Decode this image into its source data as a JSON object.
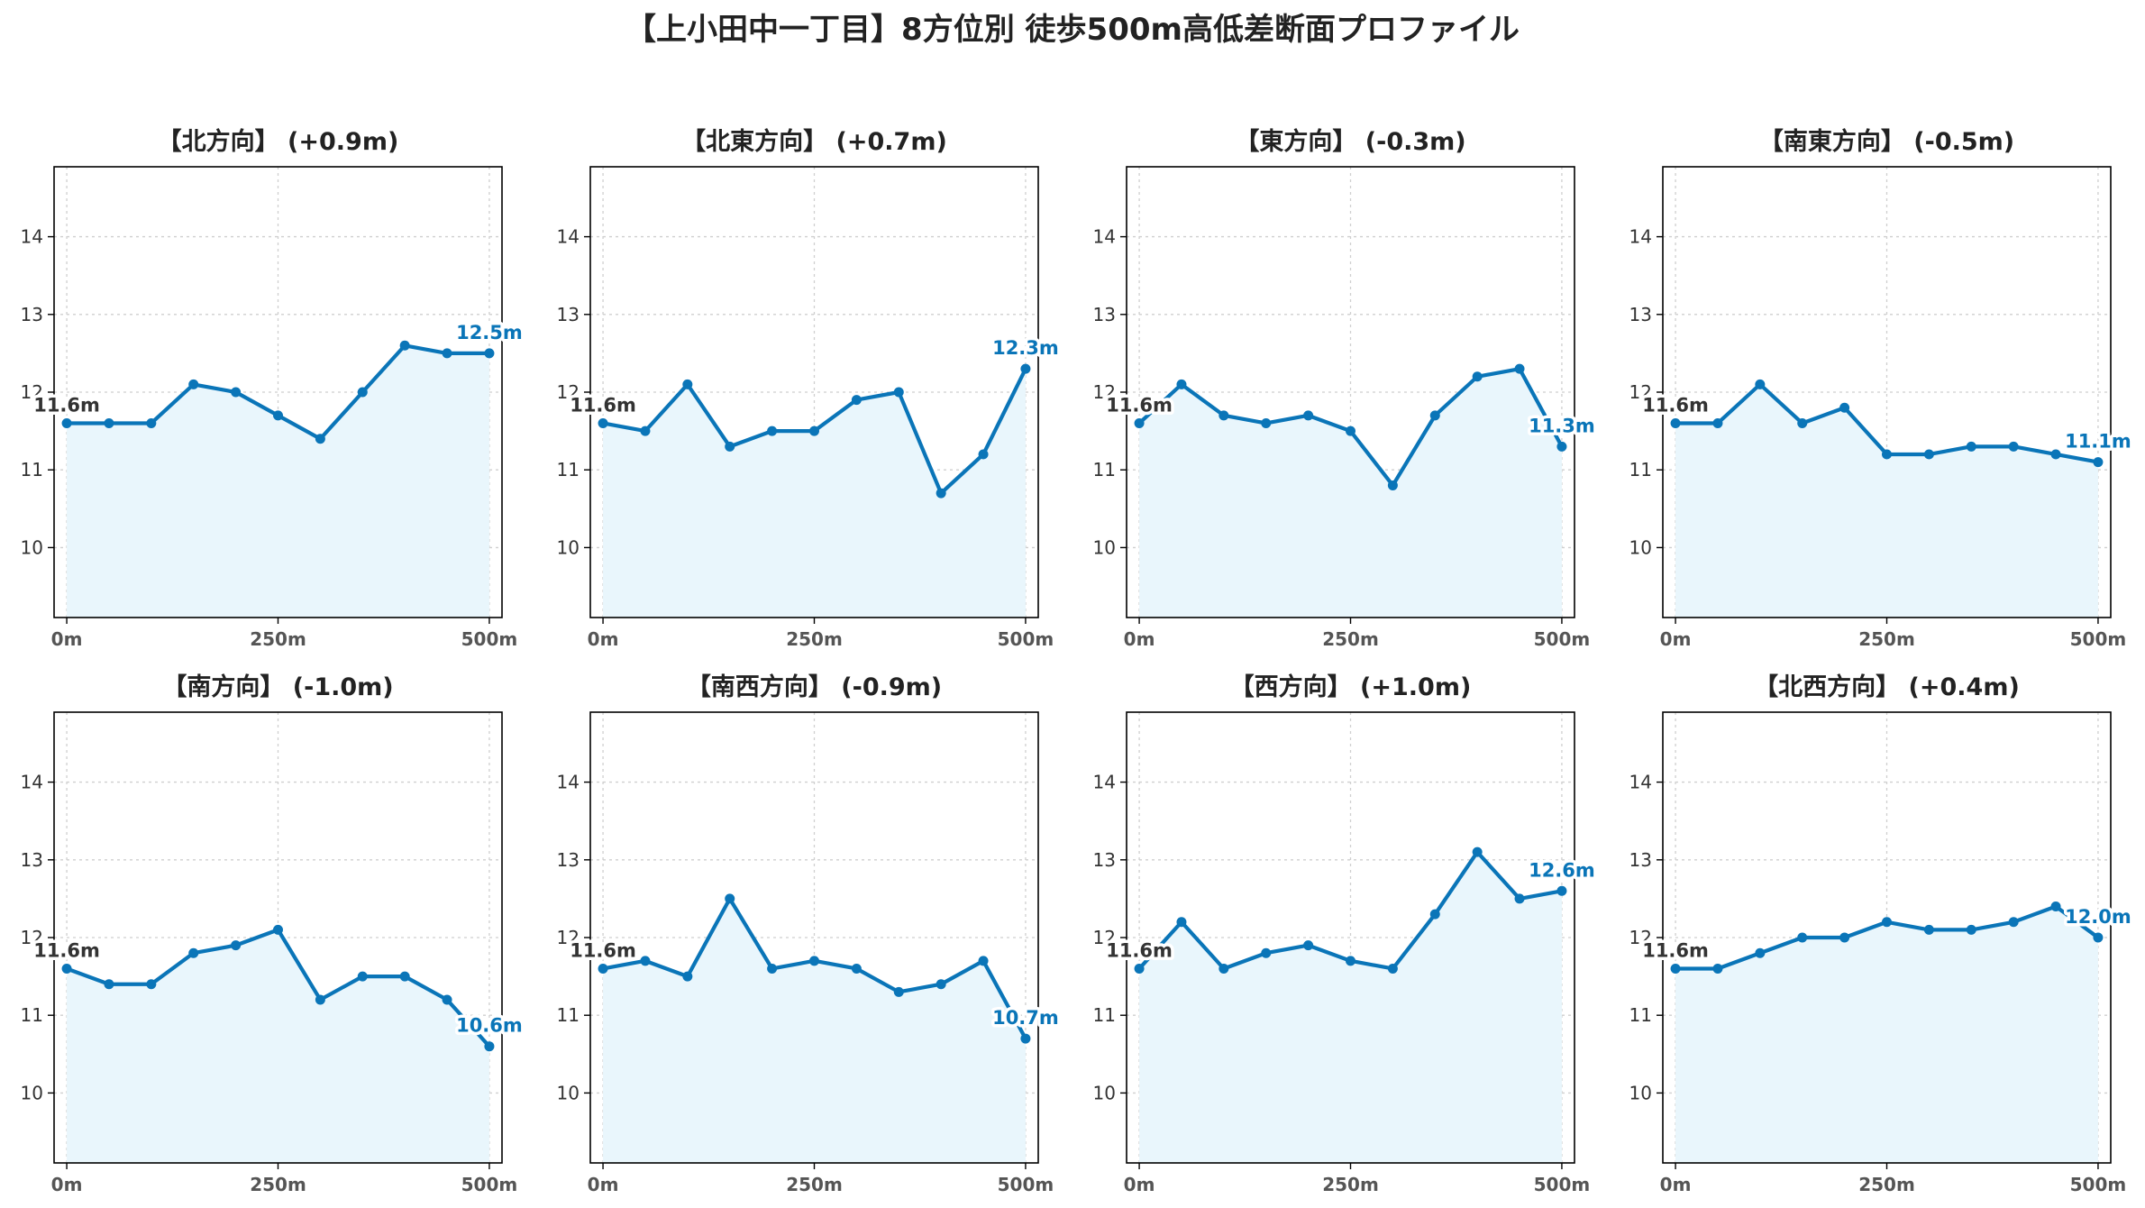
{
  "figure": {
    "title": "【上小田中一丁目】8方位別 徒歩500m高低差断面プロファイル"
  },
  "colors": {
    "line": "#0a75b8",
    "fill": "#e9f6fc",
    "grid": "#cfcfcf",
    "start_label": "#333333",
    "end_label": "#0a75b8"
  },
  "chart_data": [
    {
      "type": "line",
      "title": "【北方向】 (+0.9m)",
      "x": [
        0,
        50,
        100,
        150,
        200,
        250,
        300,
        350,
        400,
        450,
        500
      ],
      "y": [
        11.6,
        11.6,
        11.6,
        12.1,
        12.0,
        11.7,
        11.4,
        12.0,
        12.6,
        12.5,
        12.5
      ],
      "start_label": "11.6m",
      "end_label": "12.5m",
      "xticks": [
        "0m",
        "250m",
        "500m"
      ],
      "yticks": [
        "10",
        "11",
        "12",
        "13",
        "14"
      ],
      "ylim": [
        9.1,
        14.9
      ],
      "xlim": [
        -15,
        515
      ],
      "grid": true
    },
    {
      "type": "line",
      "title": "【北東方向】 (+0.7m)",
      "x": [
        0,
        50,
        100,
        150,
        200,
        250,
        300,
        350,
        400,
        450,
        500
      ],
      "y": [
        11.6,
        11.5,
        12.1,
        11.3,
        11.5,
        11.5,
        11.9,
        12.0,
        10.7,
        11.2,
        12.3
      ],
      "start_label": "11.6m",
      "end_label": "12.3m",
      "xticks": [
        "0m",
        "250m",
        "500m"
      ],
      "yticks": [
        "10",
        "11",
        "12",
        "13",
        "14"
      ],
      "ylim": [
        9.1,
        14.9
      ],
      "xlim": [
        -15,
        515
      ],
      "grid": true
    },
    {
      "type": "line",
      "title": "【東方向】 (-0.3m)",
      "x": [
        0,
        50,
        100,
        150,
        200,
        250,
        300,
        350,
        400,
        450,
        500
      ],
      "y": [
        11.6,
        12.1,
        11.7,
        11.6,
        11.7,
        11.5,
        10.8,
        11.7,
        12.2,
        12.3,
        11.3
      ],
      "start_label": "11.6m",
      "end_label": "11.3m",
      "xticks": [
        "0m",
        "250m",
        "500m"
      ],
      "yticks": [
        "10",
        "11",
        "12",
        "13",
        "14"
      ],
      "ylim": [
        9.1,
        14.9
      ],
      "xlim": [
        -15,
        515
      ],
      "grid": true
    },
    {
      "type": "line",
      "title": "【南東方向】 (-0.5m)",
      "x": [
        0,
        50,
        100,
        150,
        200,
        250,
        300,
        350,
        400,
        450,
        500
      ],
      "y": [
        11.6,
        11.6,
        12.1,
        11.6,
        11.8,
        11.2,
        11.2,
        11.3,
        11.3,
        11.2,
        11.1
      ],
      "start_label": "11.6m",
      "end_label": "11.1m",
      "xticks": [
        "0m",
        "250m",
        "500m"
      ],
      "yticks": [
        "10",
        "11",
        "12",
        "13",
        "14"
      ],
      "ylim": [
        9.1,
        14.9
      ],
      "xlim": [
        -15,
        515
      ],
      "grid": true
    },
    {
      "type": "line",
      "title": "【南方向】 (-1.0m)",
      "x": [
        0,
        50,
        100,
        150,
        200,
        250,
        300,
        350,
        400,
        450,
        500
      ],
      "y": [
        11.6,
        11.4,
        11.4,
        11.8,
        11.9,
        12.1,
        11.2,
        11.5,
        11.5,
        11.2,
        10.6
      ],
      "start_label": "11.6m",
      "end_label": "10.6m",
      "xticks": [
        "0m",
        "250m",
        "500m"
      ],
      "yticks": [
        "10",
        "11",
        "12",
        "13",
        "14"
      ],
      "ylim": [
        9.1,
        14.9
      ],
      "xlim": [
        -15,
        515
      ],
      "grid": true
    },
    {
      "type": "line",
      "title": "【南西方向】 (-0.9m)",
      "x": [
        0,
        50,
        100,
        150,
        200,
        250,
        300,
        350,
        400,
        450,
        500
      ],
      "y": [
        11.6,
        11.7,
        11.5,
        12.5,
        11.6,
        11.7,
        11.6,
        11.3,
        11.4,
        11.7,
        10.7
      ],
      "start_label": "11.6m",
      "end_label": "10.7m",
      "xticks": [
        "0m",
        "250m",
        "500m"
      ],
      "yticks": [
        "10",
        "11",
        "12",
        "13",
        "14"
      ],
      "ylim": [
        9.1,
        14.9
      ],
      "xlim": [
        -15,
        515
      ],
      "grid": true
    },
    {
      "type": "line",
      "title": "【西方向】 (+1.0m)",
      "x": [
        0,
        50,
        100,
        150,
        200,
        250,
        300,
        350,
        400,
        450,
        500
      ],
      "y": [
        11.6,
        12.2,
        11.6,
        11.8,
        11.9,
        11.7,
        11.6,
        12.3,
        13.1,
        12.5,
        12.6
      ],
      "start_label": "11.6m",
      "end_label": "12.6m",
      "xticks": [
        "0m",
        "250m",
        "500m"
      ],
      "yticks": [
        "10",
        "11",
        "12",
        "13",
        "14"
      ],
      "ylim": [
        9.1,
        14.9
      ],
      "xlim": [
        -15,
        515
      ],
      "grid": true
    },
    {
      "type": "line",
      "title": "【北西方向】 (+0.4m)",
      "x": [
        0,
        50,
        100,
        150,
        200,
        250,
        300,
        350,
        400,
        450,
        500
      ],
      "y": [
        11.6,
        11.6,
        11.8,
        12.0,
        12.0,
        12.2,
        12.1,
        12.1,
        12.2,
        12.4,
        12.0
      ],
      "start_label": "11.6m",
      "end_label": "12.0m",
      "xticks": [
        "0m",
        "250m",
        "500m"
      ],
      "yticks": [
        "10",
        "11",
        "12",
        "13",
        "14"
      ],
      "ylim": [
        9.1,
        14.9
      ],
      "xlim": [
        -15,
        515
      ],
      "grid": true
    }
  ]
}
